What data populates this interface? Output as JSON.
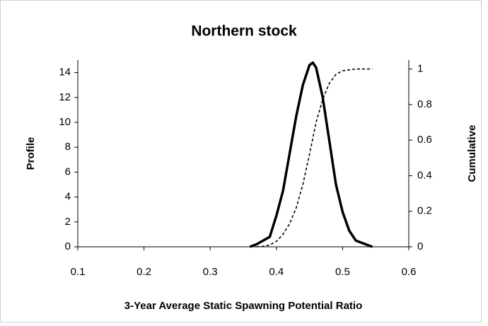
{
  "chart_data": {
    "type": "line",
    "title": "Northern stock",
    "x_label": "3-Year Average Static Spawning Potential Ratio",
    "y_label": "Profile",
    "y2_label": "Cumulative",
    "x": [
      0.36,
      0.37,
      0.38,
      0.39,
      0.4,
      0.41,
      0.42,
      0.43,
      0.44,
      0.45,
      0.455,
      0.46,
      0.47,
      0.48,
      0.49,
      0.5,
      0.51,
      0.52,
      0.53,
      0.545
    ],
    "series": [
      {
        "color": "#000000",
        "values": [
          0,
          0.2,
          0.5,
          0.8,
          2.5,
          4.5,
          7.5,
          10.5,
          13,
          14.6,
          14.8,
          14.4,
          12,
          8.5,
          5,
          2.8,
          1.3,
          0.5,
          0.3,
          0
        ]
      },
      {
        "color": "#000000",
        "axis": "y2",
        "dashed": true,
        "values": [
          null,
          0,
          0.003,
          0.01,
          0.03,
          0.07,
          0.13,
          0.22,
          0.35,
          0.52,
          0.61,
          0.7,
          0.83,
          0.92,
          0.97,
          0.99,
          0.995,
          1.0,
          1.0,
          1.0
        ]
      }
    ],
    "xlim": [
      0.1,
      0.6
    ],
    "xticks": [
      0.1,
      0.2,
      0.3,
      0.4,
      0.5,
      0.6
    ],
    "ylim": [
      0,
      15
    ],
    "yticks": [
      0,
      2,
      4,
      6,
      8,
      10,
      12,
      14
    ],
    "y2lim": [
      0,
      1.05
    ],
    "y2ticks": [
      0,
      0.2,
      0.4,
      0.6,
      0.8,
      1
    ]
  }
}
